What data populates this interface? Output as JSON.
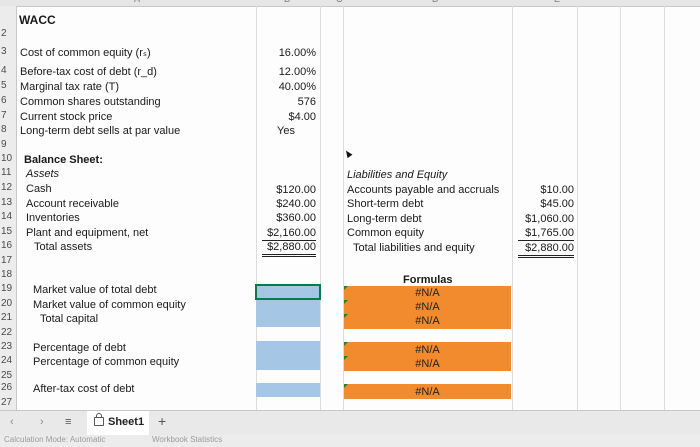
{
  "columns": {
    "a": "A",
    "b": "B",
    "c": "C",
    "d": "D",
    "e": "E"
  },
  "title": "WACC",
  "row_numbers": [
    "2",
    "3",
    "4",
    "5",
    "6",
    "7",
    "8",
    "9",
    "10",
    "11",
    "12",
    "13",
    "14",
    "15",
    "16",
    "17",
    "18",
    "19",
    "20",
    "21",
    "22",
    "23",
    "24",
    "25",
    "26",
    "27"
  ],
  "inputs": [
    {
      "label": "Cost of common equity (rₛ)",
      "value": "16.00%"
    },
    {
      "label": "Before-tax cost of debt (r_d)",
      "value": "12.00%"
    },
    {
      "label": "Marginal tax rate (T)",
      "value": "40.00%"
    },
    {
      "label": "Common shares outstanding",
      "value": "576"
    },
    {
      "label": "Current stock price",
      "value": "$4.00"
    },
    {
      "label": "Long-term debt sells at par value",
      "value": "Yes"
    }
  ],
  "balance_sheet": {
    "title": "Balance Sheet:",
    "assets_header": "Assets",
    "assets": [
      {
        "label": "Cash",
        "value": "$120.00"
      },
      {
        "label": "Account receivable",
        "value": "$240.00"
      },
      {
        "label": "Inventories",
        "value": "$360.00"
      },
      {
        "label": "Plant and equipment, net",
        "value": "$2,160.00"
      },
      {
        "label": "Total assets",
        "value": "$2,880.00"
      }
    ],
    "liabilities_header": "Liabilities and Equity",
    "liabilities": [
      {
        "label": "Accounts payable and accruals",
        "value": "$10.00"
      },
      {
        "label": "Short-term debt",
        "value": "$45.00"
      },
      {
        "label": "Long-term debt",
        "value": "$1,060.00"
      },
      {
        "label": "Common equity",
        "value": "$1,765.00"
      },
      {
        "label": "Total liabilities and equity",
        "value": "$2,880.00"
      }
    ]
  },
  "calc": {
    "market_debt": "Market value of total debt",
    "market_equity": "Market value of common equity",
    "total_capital": "Total capital",
    "pct_debt": "Percentage of debt",
    "pct_equity": "Percentage of common equity",
    "after_tax_debt": "After-tax cost of debt"
  },
  "formulas": {
    "header": "Formulas",
    "na": "#N/A"
  },
  "sheet_tabs": [
    {
      "label": "Sheet1"
    }
  ],
  "add_sheet": "+",
  "status": {
    "calc_mode": "Calculation Mode: Automatic",
    "workbook": "Workbook Statistics"
  },
  "colors": {
    "input_blue": "#a6c6e6",
    "formula_orange": "#f28a2e",
    "grid": "#dcdcdc"
  }
}
